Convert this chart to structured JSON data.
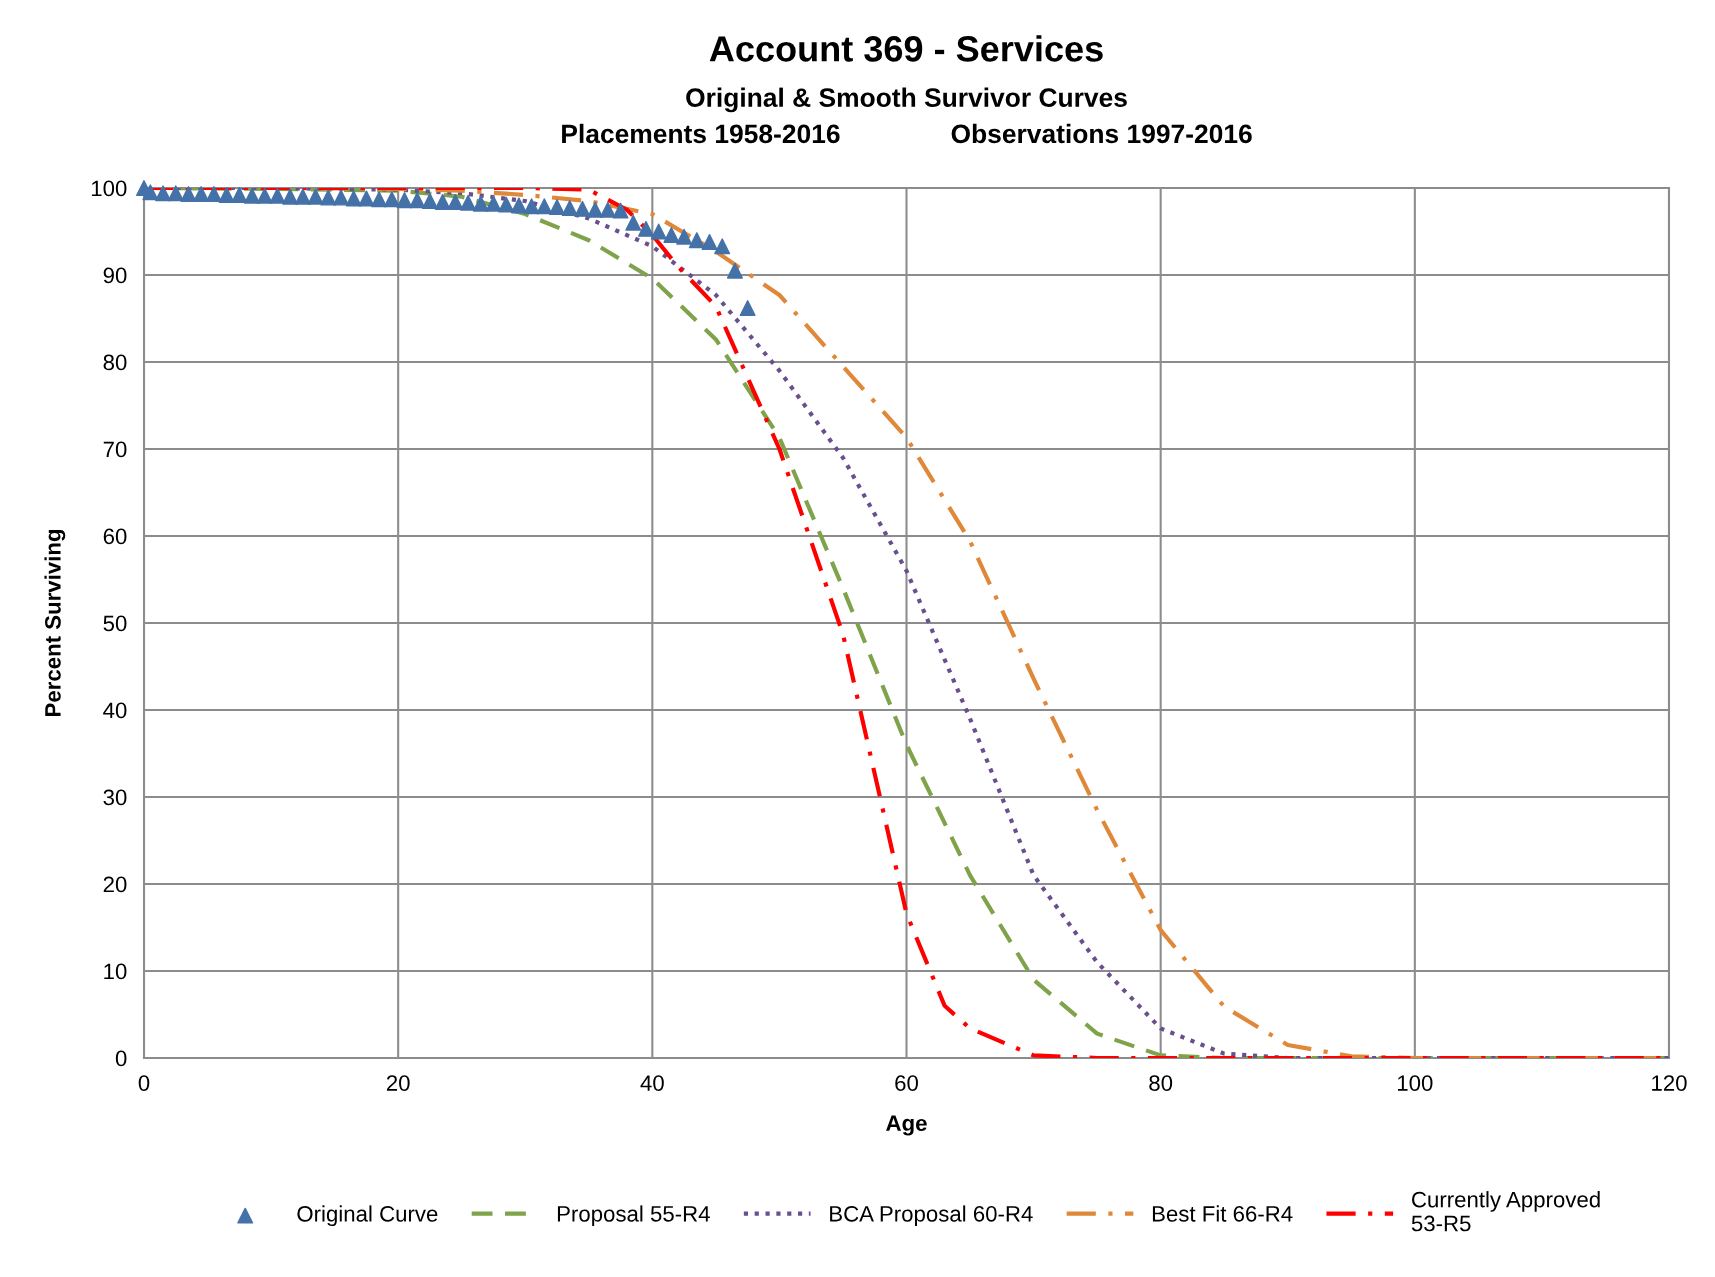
{
  "chart_data": {
    "type": "line",
    "title": "Account 369 - Services",
    "subtitle": "Original & Smooth Survivor Curves\nPlacements 1958-2016               Observations 1997-2016",
    "xlabel": "Age",
    "ylabel": "Percent Surviving",
    "xlim": [
      0,
      120
    ],
    "xticks": [
      0,
      20,
      40,
      60,
      80,
      100,
      120
    ],
    "ylim": [
      0,
      100
    ],
    "yticks": [
      0,
      10,
      20,
      30,
      40,
      50,
      60,
      70,
      80,
      90,
      100
    ],
    "grid": true,
    "legend": "bottom",
    "series": [
      {
        "name": "Original Curve",
        "type": "scatter",
        "marker": "triangle",
        "color": "#4472a8",
        "x": [
          0,
          0.5,
          1.5,
          2.5,
          3.5,
          4.5,
          5.5,
          6.5,
          7.5,
          8.5,
          9.5,
          10.5,
          11.5,
          12.5,
          13.5,
          14.5,
          15.5,
          16.5,
          17.5,
          18.5,
          19.5,
          20.5,
          21.5,
          22.5,
          23.5,
          24.5,
          25.5,
          26.5,
          27.5,
          28.5,
          29.5,
          30.5,
          31.5,
          32.5,
          33.5,
          34.5,
          35.5,
          36.5,
          37.5,
          38.5,
          39.5,
          40.5,
          41.5,
          42.5,
          43.5,
          44.5,
          45.5,
          46.5,
          47.5
        ],
        "values": [
          100,
          99.5,
          99.4,
          99.4,
          99.3,
          99.3,
          99.3,
          99.2,
          99.2,
          99.1,
          99.1,
          99.1,
          99.0,
          99.0,
          99.0,
          98.9,
          98.9,
          98.8,
          98.8,
          98.7,
          98.7,
          98.6,
          98.6,
          98.5,
          98.4,
          98.4,
          98.3,
          98.2,
          98.2,
          98.1,
          98.0,
          97.9,
          97.9,
          97.8,
          97.7,
          97.6,
          97.5,
          97.5,
          97.4,
          96.0,
          95.3,
          95.0,
          94.6,
          94.4,
          94.0,
          93.8,
          93.3,
          90.5,
          86.2
        ]
      },
      {
        "name": "Proposal 55-R4",
        "line_style": "dashed",
        "color": "#7fa34a",
        "x": [
          0,
          10,
          20,
          25,
          30,
          35,
          40,
          45,
          50,
          55,
          60,
          65,
          70,
          75,
          80,
          85,
          120
        ],
        "values": [
          100,
          99.9,
          99.7,
          99,
          97,
          94,
          89.6,
          82.6,
          71.3,
          54,
          36,
          21,
          9,
          2.8,
          0.3,
          0,
          0
        ]
      },
      {
        "name": "BCA Proposal 60-R4",
        "line_style": "dotted",
        "color": "#6a4f8f",
        "x": [
          0,
          10,
          20,
          25,
          30,
          35,
          40,
          45,
          50,
          55,
          60,
          65,
          70,
          75,
          80,
          85,
          90,
          120
        ],
        "values": [
          100,
          100,
          99.8,
          99.4,
          98.5,
          96.5,
          93.3,
          87.7,
          79,
          69,
          56,
          39,
          21,
          11,
          3.4,
          0.5,
          0,
          0
        ]
      },
      {
        "name": "Best Fit 66-R4",
        "line_style": "dashdot",
        "color": "#e0883a",
        "x": [
          0,
          10,
          20,
          25,
          30,
          35,
          40,
          45,
          50,
          55,
          60,
          65,
          70,
          75,
          80,
          85,
          90,
          95,
          100,
          120
        ],
        "values": [
          100,
          100,
          99.9,
          99.7,
          99.2,
          98.5,
          97,
          92.7,
          87.7,
          79.5,
          71.3,
          59.4,
          43.6,
          28.5,
          14.7,
          5.9,
          1.5,
          0.2,
          0,
          0
        ]
      },
      {
        "name": "Currently Approved\n53-R5",
        "line_style": "dashdot",
        "color": "#ff0000",
        "x": [
          0,
          20,
          30,
          35,
          38,
          40,
          42,
          45,
          50,
          55,
          60,
          63,
          65,
          70,
          75,
          120
        ],
        "values": [
          100,
          100,
          100,
          99.8,
          97.5,
          94.6,
          91,
          86.4,
          70,
          48.7,
          16.6,
          6,
          3.4,
          0.3,
          0,
          0
        ]
      }
    ]
  }
}
